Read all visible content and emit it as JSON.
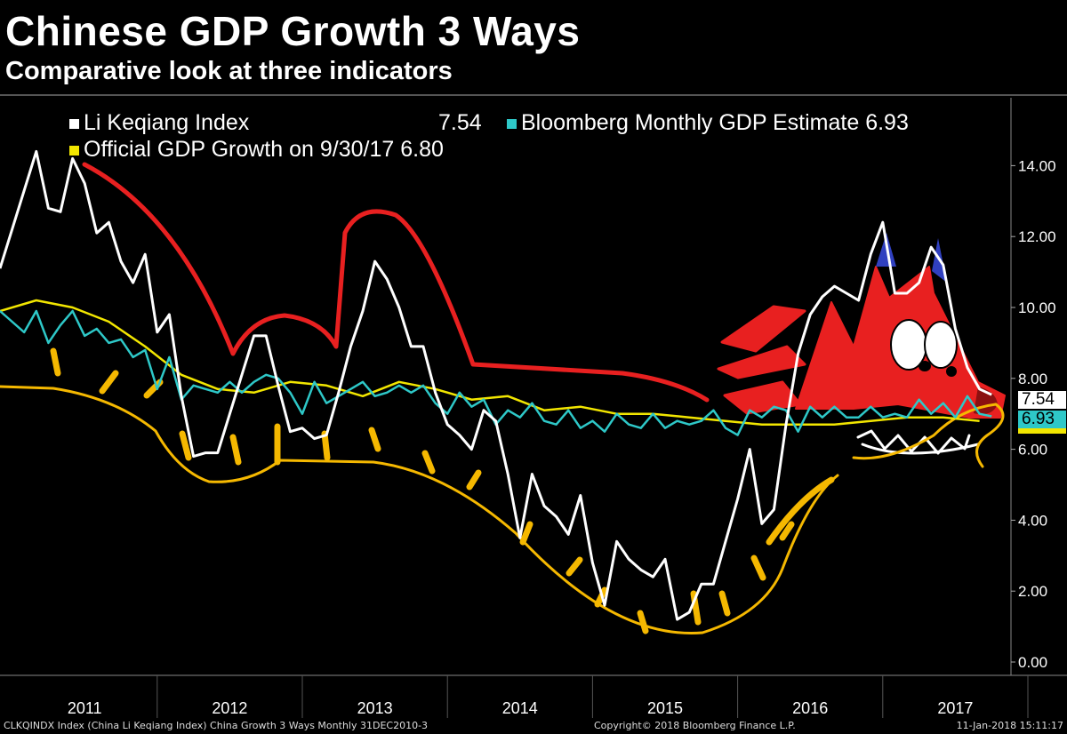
{
  "title": "Chinese GDP Growth 3 Ways",
  "subtitle": "Comparative look at three indicators",
  "legend": [
    {
      "label": "Li Keqiang Index",
      "value": "7.54",
      "color": "#ffffff"
    },
    {
      "label": "Bloomberg Monthly GDP Estimate",
      "value": "6.93",
      "color": "#2ec8c8"
    },
    {
      "label": "Official GDP Growth on 9/30/17",
      "value": "6.80",
      "color": "#f2e600"
    }
  ],
  "footer": {
    "left": "CLKQINDX Index (China Li Keqiang Index) China Growth 3 Ways  Monthly 31DEC2010-3",
    "center": "Copyright© 2018 Bloomberg Finance L.P.",
    "right": "11-Jan-2018 15:11:17"
  },
  "chart_data": {
    "type": "line",
    "title": "Chinese GDP Growth 3 Ways",
    "frequency": "monthly",
    "start": "Dec-2010",
    "ylim": [
      0,
      15
    ],
    "yticks": [
      "0.00",
      "2.00",
      "4.00",
      "6.00",
      "8.00",
      "10.00",
      "12.00",
      "14.00"
    ],
    "xticks": [
      "2011",
      "2012",
      "2013",
      "2014",
      "2015",
      "2016",
      "2017"
    ],
    "last_value_tags": [
      "7.54",
      "6.93"
    ],
    "series": [
      {
        "name": "Li Keqiang Index",
        "color": "#ffffff",
        "values": [
          11.1,
          12.2,
          13.3,
          14.4,
          12.8,
          12.7,
          14.2,
          13.5,
          12.1,
          12.4,
          11.3,
          10.7,
          11.5,
          9.3,
          9.8,
          7.5,
          5.8,
          5.9,
          5.9,
          7.0,
          8.1,
          9.2,
          9.2,
          7.8,
          6.5,
          6.6,
          6.3,
          6.4,
          7.6,
          8.9,
          9.9,
          11.3,
          10.8,
          10.0,
          8.9,
          8.9,
          7.6,
          6.7,
          6.4,
          6.0,
          7.1,
          6.8,
          5.3,
          3.5,
          5.3,
          4.4,
          4.1,
          3.6,
          4.7,
          2.8,
          1.6,
          3.4,
          2.9,
          2.6,
          2.4,
          2.9,
          1.2,
          1.4,
          2.2,
          2.2,
          3.4,
          4.6,
          6.0,
          3.9,
          4.3,
          6.7,
          8.7,
          9.8,
          10.3,
          10.6,
          10.4,
          10.2,
          11.5,
          12.4,
          10.4,
          10.4,
          10.7,
          11.7,
          11.2,
          9.4,
          8.3,
          7.7,
          7.54
        ]
      },
      {
        "name": "Bloomberg Monthly GDP Estimate",
        "color": "#2ec8c8",
        "values": [
          9.9,
          9.6,
          9.3,
          9.9,
          9.0,
          9.5,
          9.9,
          9.2,
          9.4,
          9.0,
          9.1,
          8.6,
          8.8,
          7.7,
          8.6,
          7.4,
          7.8,
          7.7,
          7.6,
          7.9,
          7.6,
          7.9,
          8.1,
          8.0,
          7.6,
          7.0,
          7.9,
          7.3,
          7.5,
          7.7,
          7.9,
          7.5,
          7.6,
          7.8,
          7.6,
          7.8,
          7.3,
          7.0,
          7.6,
          7.2,
          7.4,
          6.7,
          7.1,
          6.9,
          7.3,
          6.8,
          6.7,
          7.1,
          6.6,
          6.8,
          6.5,
          7.0,
          6.7,
          6.6,
          7.0,
          6.6,
          6.8,
          6.7,
          6.8,
          7.1,
          6.6,
          6.4,
          7.1,
          6.9,
          7.2,
          7.1,
          6.5,
          7.2,
          6.9,
          7.2,
          6.9,
          6.9,
          7.2,
          6.9,
          7.0,
          6.9,
          7.4,
          7.0,
          7.3,
          6.9,
          7.5,
          7.0,
          6.93
        ]
      },
      {
        "name": "Official GDP Growth",
        "color": "#f2e600",
        "quarterly": true,
        "values": [
          9.9,
          10.2,
          10.0,
          9.6,
          8.9,
          8.1,
          7.7,
          7.6,
          7.9,
          7.8,
          7.5,
          7.9,
          7.7,
          7.4,
          7.5,
          7.1,
          7.2,
          7.0,
          7.0,
          6.9,
          6.8,
          6.7,
          6.7,
          6.7,
          6.8,
          6.9,
          6.9,
          6.8
        ]
      }
    ]
  }
}
